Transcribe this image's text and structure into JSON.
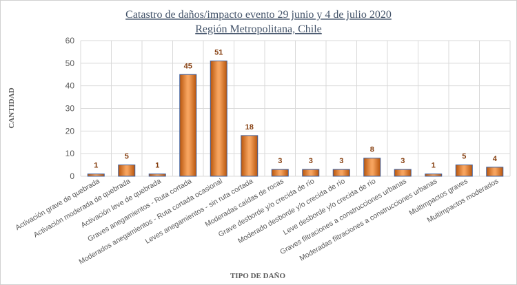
{
  "chart_data": {
    "type": "bar",
    "title": "Catastro de daños/impacto  evento 29 junio  y 4 de julio 2020",
    "subtitle": "Región  Metropolitana,  Chile",
    "xlabel": "TIPO DE DAÑO",
    "ylabel": "CANTIDAD",
    "ylim": [
      0,
      60
    ],
    "yticks": [
      0,
      10,
      20,
      30,
      40,
      50,
      60
    ],
    "grid": true,
    "legend": "none",
    "categories": [
      "Activación grave de quebrada",
      "Activación moderada de quebrada",
      "Activación leve de quebrada",
      "Graves anegamientos - Ruta cortada",
      "Moderados anegamientos - Ruta cortada ocasional",
      "Leves anegamientos - sin ruta cortada",
      "Moderadas caídas de rocas",
      "Grave desborde y/o crecida de río",
      "Moderado desborde y/o crecida de río",
      "Leve desborde y/o crecida de río",
      "Graves filtraciones a construcciones urbanas",
      "Moderadas filtraciones a construcciones urbanas",
      "Multimpactos graves",
      "Multimpactos moderados"
    ],
    "values": [
      1,
      5,
      1,
      45,
      51,
      18,
      3,
      3,
      3,
      8,
      3,
      1,
      5,
      4
    ],
    "colors": {
      "bar_light": "#fbd0a8",
      "bar_mid": "#f08a3c",
      "bar_dark": "#b8550c",
      "bar_edge": "#3f5f9b",
      "data_label": "#843c0c",
      "grid": "#d9d9d9"
    }
  }
}
